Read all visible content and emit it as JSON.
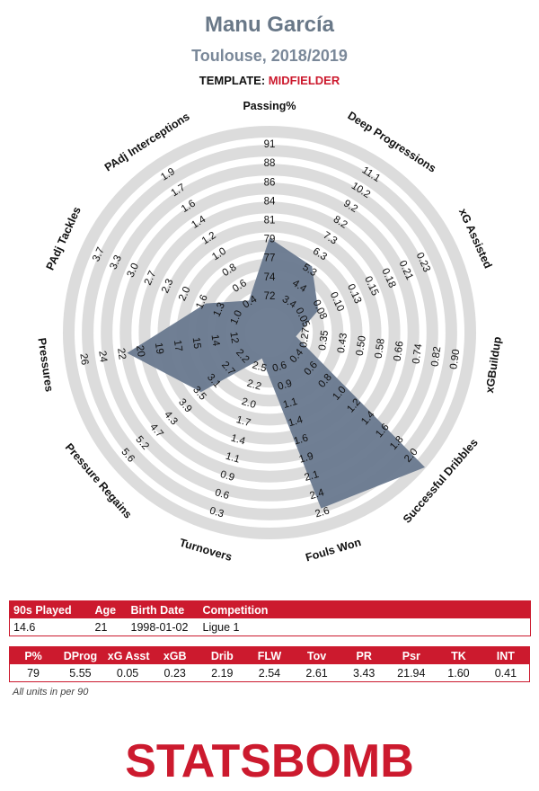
{
  "header": {
    "player_name": "Manu García",
    "subtitle": "Toulouse, 2018/2019",
    "template_label": "TEMPLATE:",
    "template_value": "MIDFIELDER"
  },
  "colors": {
    "polygon": "#68788e",
    "rings": "#dcdcdc",
    "accent": "#cc1a2e",
    "title": "#697888"
  },
  "chart_data": {
    "type": "radar",
    "grid": "concentric rings",
    "axes": [
      {
        "name": "Passing%",
        "ticks": [
          "72",
          "74",
          "77",
          "79",
          "81",
          "84",
          "86",
          "88",
          "91"
        ],
        "value": 79,
        "min": 70,
        "max": 92
      },
      {
        "name": "Deep Progressions",
        "ticks": [
          "3.4",
          "4.4",
          "5.3",
          "6.3",
          "7.3",
          "8.2",
          "9.2",
          "10.2",
          "11.1"
        ],
        "value": 5.55,
        "min": 2.4,
        "max": 12.1
      },
      {
        "name": "xG Assisted",
        "ticks": [
          "0.05",
          "0.08",
          "0.10",
          "0.13",
          "0.15",
          "0.18",
          "0.21",
          "0.23"
        ],
        "value": 0.05,
        "min": 0.0,
        "max": 0.26
      },
      {
        "name": "xGBuildup",
        "ticks": [
          "0.27",
          "0.35",
          "0.43",
          "0.50",
          "0.58",
          "0.66",
          "0.74",
          "0.82",
          "0.90"
        ],
        "value": 0.23,
        "min": 0.19,
        "max": 0.98
      },
      {
        "name": "Successful Dribbles",
        "ticks": [
          "0.4",
          "0.6",
          "0.8",
          "1.0",
          "1.2",
          "1.4",
          "1.6",
          "1.8",
          "2.0"
        ],
        "value": 2.19,
        "min": 0.2,
        "max": 2.2
      },
      {
        "name": "Fouls Won",
        "ticks": [
          "0.6",
          "0.9",
          "1.1",
          "1.4",
          "1.6",
          "1.9",
          "2.1",
          "2.4",
          "2.6"
        ],
        "value": 2.54,
        "min": 0.35,
        "max": 2.85
      },
      {
        "name": "Turnovers",
        "ticks": [
          "2.5",
          "2.2",
          "2.0",
          "1.7",
          "1.4",
          "1.1",
          "0.9",
          "0.6",
          "0.3"
        ],
        "value": 2.61,
        "min": 2.75,
        "max": 0.05
      },
      {
        "name": "Pressure Regains",
        "ticks": [
          "2.2",
          "2.7",
          "3.1",
          "3.5",
          "3.9",
          "4.3",
          "4.7",
          "5.2",
          "5.6"
        ],
        "value": 3.43,
        "min": 1.8,
        "max": 6.0
      },
      {
        "name": "Pressures",
        "ticks": [
          "12",
          "14",
          "15",
          "17",
          "19",
          "20",
          "22",
          "24",
          "26"
        ],
        "value": 21.94,
        "min": 10.3,
        "max": 27.7
      },
      {
        "name": "PAdj Tackles",
        "ticks": [
          "1.0",
          "1.3",
          "1.6",
          "2.0",
          "2.3",
          "2.7",
          "3.0",
          "3.3",
          "3.7"
        ],
        "value": 1.6,
        "min": 0.65,
        "max": 4.05
      },
      {
        "name": "PAdj Interceptions",
        "ticks": [
          "0.4",
          "0.6",
          "0.8",
          "1.0",
          "1.2",
          "1.4",
          "1.6",
          "1.7",
          "1.9"
        ],
        "value": 0.41,
        "min": 0.2,
        "max": 2.1
      }
    ]
  },
  "info_table": {
    "headers": [
      "90s Played",
      "Age",
      "Birth Date",
      "Competition"
    ],
    "values": [
      "14.6",
      "21",
      "1998-01-02",
      "Ligue 1"
    ]
  },
  "stats_table": {
    "headers": [
      "P%",
      "DProg",
      "xG Asst",
      "xGB",
      "Drib",
      "FLW",
      "Tov",
      "PR",
      "Psr",
      "TK",
      "INT"
    ],
    "values": [
      "79",
      "5.55",
      "0.05",
      "0.23",
      "2.19",
      "2.54",
      "2.61",
      "3.43",
      "21.94",
      "1.60",
      "0.41"
    ]
  },
  "units_note": "All units in per 90",
  "logo_text": "STATSBOMB"
}
